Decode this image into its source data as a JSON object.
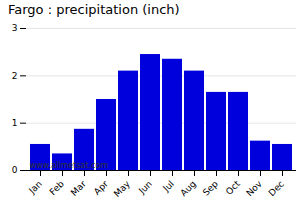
{
  "chart_data": {
    "type": "bar",
    "title": "Fargo : precipitation (inch)",
    "categories": [
      "Jan",
      "Feb",
      "Mar",
      "Apr",
      "May",
      "Jun",
      "Jul",
      "Aug",
      "Sep",
      "Oct",
      "Nov",
      "Dec"
    ],
    "values": [
      0.55,
      0.35,
      0.87,
      1.5,
      2.1,
      2.45,
      2.35,
      2.1,
      1.65,
      1.65,
      0.62,
      0.55
    ],
    "color": "#0000dd",
    "ylim": [
      0,
      3
    ],
    "yticks": [
      0,
      1,
      2,
      3
    ],
    "grid": true,
    "annotations": [
      "www.allmetsat.com"
    ]
  }
}
